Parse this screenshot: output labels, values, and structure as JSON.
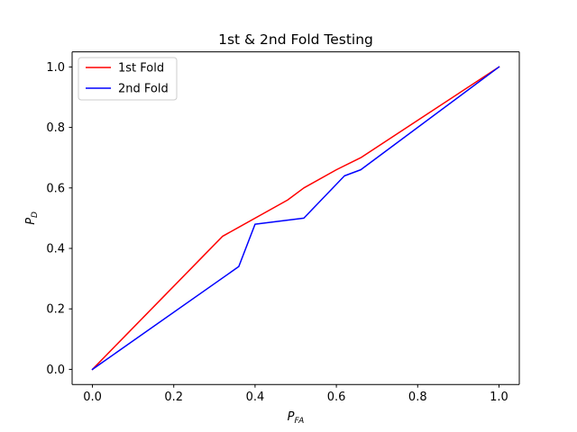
{
  "chart_data": {
    "type": "line",
    "title": "1st & 2nd Fold Testing",
    "xlabel": {
      "main": "P",
      "sub": "FA"
    },
    "ylabel": {
      "main": "P",
      "sub": "D"
    },
    "xlim": [
      -0.05,
      1.05
    ],
    "ylim": [
      -0.05,
      1.05
    ],
    "xticks": [
      "0.0",
      "0.2",
      "0.4",
      "0.6",
      "0.8",
      "1.0"
    ],
    "xtick_values": [
      0.0,
      0.2,
      0.4,
      0.6,
      0.8,
      1.0
    ],
    "yticks": [
      "0.0",
      "0.2",
      "0.4",
      "0.6",
      "0.8",
      "1.0"
    ],
    "ytick_values": [
      0.0,
      0.2,
      0.4,
      0.6,
      0.8,
      1.0
    ],
    "grid": false,
    "legend_position": "top-left",
    "series": [
      {
        "name": "1st Fold",
        "color": "#ff0000",
        "x": [
          0.0,
          0.32,
          0.48,
          0.52,
          0.6,
          0.66,
          1.0
        ],
        "y": [
          0.0,
          0.44,
          0.56,
          0.6,
          0.66,
          0.7,
          1.0
        ]
      },
      {
        "name": "2nd Fold",
        "color": "#0000ff",
        "x": [
          0.0,
          0.36,
          0.4,
          0.52,
          0.62,
          0.66,
          1.0
        ],
        "y": [
          0.0,
          0.34,
          0.48,
          0.5,
          0.64,
          0.66,
          1.0
        ]
      }
    ]
  }
}
